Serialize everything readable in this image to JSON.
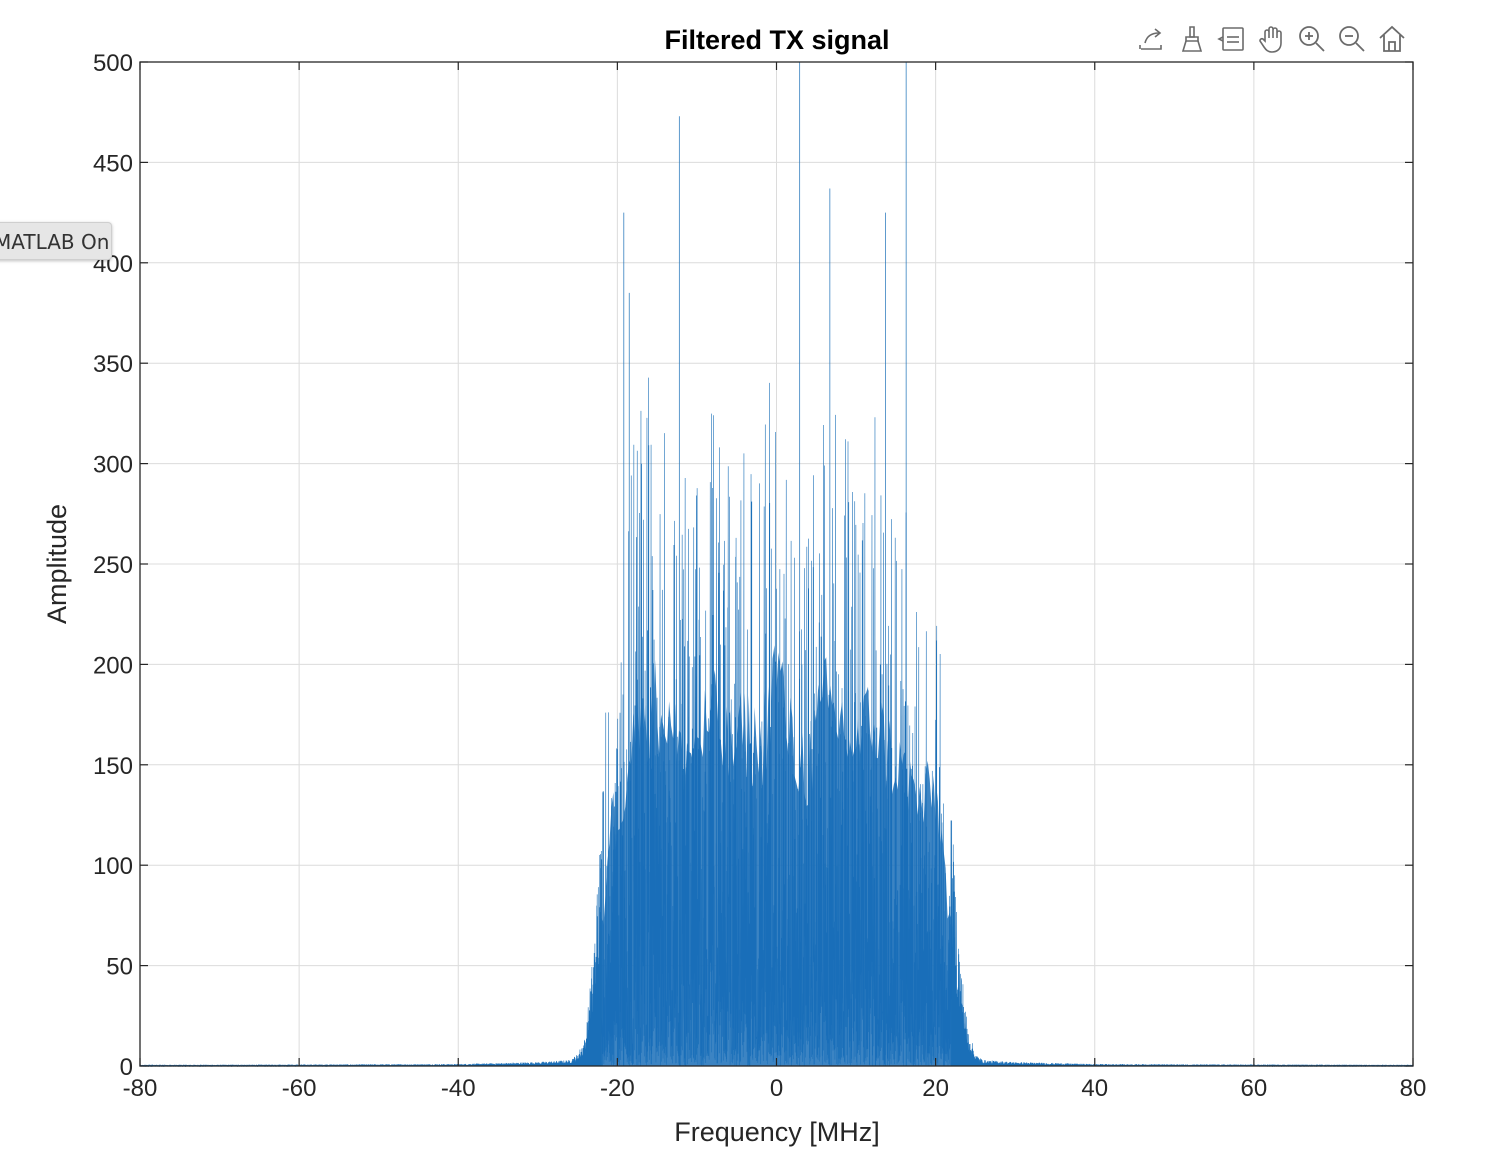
{
  "toolbar": {
    "items": [
      {
        "icon": "export-icon",
        "label": "Export"
      },
      {
        "icon": "brush-icon",
        "label": "Brush"
      },
      {
        "icon": "datatip-icon",
        "label": "Data Tips"
      },
      {
        "icon": "pan-icon",
        "label": "Pan"
      },
      {
        "icon": "zoom-in-icon",
        "label": "Zoom In"
      },
      {
        "icon": "zoom-out-icon",
        "label": "Zoom Out"
      },
      {
        "icon": "home-icon",
        "label": "Restore View"
      }
    ]
  },
  "tab": {
    "label": "MATLAB Online"
  },
  "chart_data": {
    "type": "line",
    "title": "Filtered TX signal",
    "xlabel": "Frequency [MHz]",
    "ylabel": "Amplitude",
    "xlim": [
      -80,
      80
    ],
    "ylim": [
      0,
      500
    ],
    "xticks": [
      -80,
      -60,
      -40,
      -20,
      0,
      20,
      40,
      60,
      80
    ],
    "yticks": [
      0,
      50,
      100,
      150,
      200,
      250,
      300,
      350,
      400,
      450,
      500
    ],
    "grid": true,
    "color": "#1a6fb8",
    "series": [
      {
        "description": "magnitude spectrum envelope",
        "x": [
          -80,
          -40,
          -30,
          -26,
          -25,
          -24,
          -23,
          -22,
          -21,
          -20,
          -18,
          -16,
          -14,
          -12,
          -10,
          -8,
          -6,
          -4,
          -2,
          0,
          2,
          4,
          6,
          8,
          10,
          12,
          14,
          16,
          18,
          20,
          21,
          22,
          23,
          24,
          25,
          26,
          30,
          40,
          80
        ],
        "y": [
          0.5,
          1,
          2,
          3,
          6,
          15,
          60,
          125,
          230,
          240,
          320,
          345,
          340,
          290,
          310,
          335,
          300,
          320,
          300,
          385,
          300,
          285,
          345,
          330,
          300,
          335,
          300,
          280,
          250,
          260,
          200,
          125,
          60,
          20,
          6,
          3,
          2,
          1,
          0.5
        ]
      }
    ],
    "spikes": [
      {
        "x": -19.2,
        "y": 425
      },
      {
        "x": -18.5,
        "y": 385
      },
      {
        "x": 2.9,
        "y": 500
      },
      {
        "x": 13.7,
        "y": 425
      },
      {
        "x": 16.3,
        "y": 500
      },
      {
        "x": -12.2,
        "y": 473
      },
      {
        "x": 6.7,
        "y": 437
      }
    ]
  }
}
